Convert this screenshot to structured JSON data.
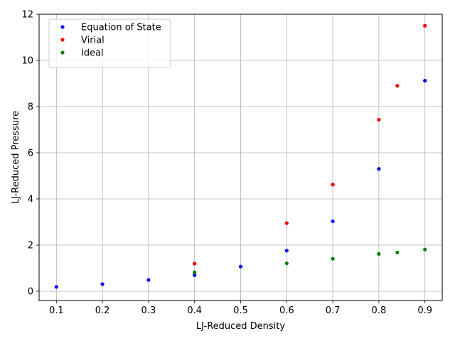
{
  "chart_data": {
    "type": "scatter",
    "title": "",
    "xlabel": "LJ-Reduced Density",
    "ylabel": "LJ-Reduced Pressure",
    "xlim": [
      0.0625,
      0.9375
    ],
    "ylim": [
      -0.4,
      12.0
    ],
    "xticks": [
      0.1,
      0.2,
      0.3,
      0.4,
      0.5,
      0.6,
      0.7,
      0.8,
      0.9
    ],
    "yticks": [
      0,
      2,
      4,
      6,
      8,
      10,
      12
    ],
    "grid": true,
    "legend_position": "top-left",
    "series": [
      {
        "name": "Equation of State",
        "color": "#0000ff",
        "points": [
          {
            "x": 0.1,
            "y": 0.19
          },
          {
            "x": 0.2,
            "y": 0.31
          },
          {
            "x": 0.3,
            "y": 0.49
          },
          {
            "x": 0.4,
            "y": 0.7
          },
          {
            "x": 0.5,
            "y": 1.07
          },
          {
            "x": 0.6,
            "y": 1.76
          },
          {
            "x": 0.7,
            "y": 3.03
          },
          {
            "x": 0.8,
            "y": 5.3
          },
          {
            "x": 0.9,
            "y": 9.12
          }
        ]
      },
      {
        "name": "Virial",
        "color": "#ff0000",
        "points": [
          {
            "x": 0.4,
            "y": 1.2
          },
          {
            "x": 0.6,
            "y": 2.95
          },
          {
            "x": 0.7,
            "y": 4.62
          },
          {
            "x": 0.8,
            "y": 7.43
          },
          {
            "x": 0.84,
            "y": 8.9
          },
          {
            "x": 0.9,
            "y": 11.5
          }
        ]
      },
      {
        "name": "Ideal",
        "color": "#008000",
        "points": [
          {
            "x": 0.4,
            "y": 0.82
          },
          {
            "x": 0.6,
            "y": 1.21
          },
          {
            "x": 0.7,
            "y": 1.41
          },
          {
            "x": 0.8,
            "y": 1.62
          },
          {
            "x": 0.84,
            "y": 1.68
          },
          {
            "x": 0.9,
            "y": 1.81
          }
        ]
      }
    ]
  }
}
